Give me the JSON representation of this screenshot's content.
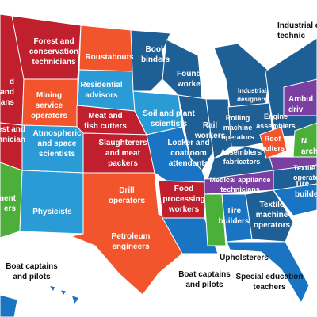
{
  "labels": [
    {
      "lines": [
        "Forest and",
        "conservation",
        "technicians"
      ]
    },
    {
      "lines": [
        "Roustabouts"
      ]
    },
    {
      "lines": [
        "Book",
        "binders"
      ]
    },
    {
      "lines": [
        "Industrial e",
        "technic"
      ]
    },
    {
      "lines": [
        "Foundry",
        "workers"
      ]
    },
    {
      "lines": [
        "Residential",
        "advisors"
      ]
    },
    {
      "lines": [
        "Mining",
        "service",
        "operators"
      ]
    },
    {
      "lines": [
        "d",
        "and",
        "ians"
      ]
    },
    {
      "lines": [
        "Industrial",
        "designers"
      ]
    },
    {
      "lines": [
        "Ambul",
        "driv"
      ]
    },
    {
      "lines": [
        "Meat and",
        "fish cutters"
      ]
    },
    {
      "lines": [
        "Soil and plant",
        "scientists"
      ]
    },
    {
      "lines": [
        "Rail",
        "workers"
      ]
    },
    {
      "lines": [
        "Rolling",
        "machine",
        "operators"
      ]
    },
    {
      "lines": [
        "Engine",
        "assemblers"
      ]
    },
    {
      "lines": [
        "Roof",
        "bolters"
      ]
    },
    {
      "lines": [
        "N",
        "arch"
      ]
    },
    {
      "lines": [
        "est and",
        "technician"
      ]
    },
    {
      "lines": [
        "Atmospheric",
        "and space",
        "scientists"
      ]
    },
    {
      "lines": [
        "Slaughterers",
        "and meat",
        "packers"
      ]
    },
    {
      "lines": [
        "Locker and",
        "coatroom",
        "attendants"
      ]
    },
    {
      "lines": [
        "Assemblers/",
        "fabricators"
      ]
    },
    {
      "lines": [
        "Textile e",
        "operator"
      ]
    },
    {
      "lines": [
        "Medical appliance",
        "technicians"
      ]
    },
    {
      "lines": [
        "Tire",
        "builder"
      ]
    },
    {
      "lines": [
        "Drill",
        "operators"
      ]
    },
    {
      "lines": [
        "Food",
        "processing",
        "workers"
      ]
    },
    {
      "lines": [
        "Tire",
        "builders"
      ]
    },
    {
      "lines": [
        "Textile",
        "machine",
        "operators"
      ]
    },
    {
      "lines": [
        "Physicists"
      ]
    },
    {
      "lines": [
        "ment",
        "ers"
      ]
    },
    {
      "lines": [
        "Petroleum",
        "engineers"
      ]
    },
    {
      "lines": [
        "Upholsterers"
      ]
    },
    {
      "lines": [
        "Boat captains",
        "and pilots"
      ]
    },
    {
      "lines": [
        "Boat captains",
        "and pilots"
      ]
    },
    {
      "lines": [
        "Special education",
        "teachers"
      ]
    }
  ]
}
